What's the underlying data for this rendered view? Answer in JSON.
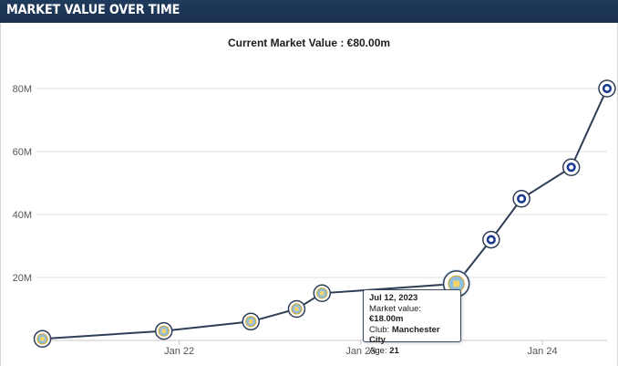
{
  "header": {
    "title": "MARKET VALUE OVER TIME"
  },
  "subtitle": "Current Market Value : €80.00m",
  "colors": {
    "header_bg": "#1d3557",
    "line": "#2f3e55",
    "grid": "#dcdcdc",
    "city_crest": "#8fbfe0",
    "chelsea_crest": "#1a3a8f"
  },
  "chart_data": {
    "type": "line",
    "title": "MARKET VALUE OVER TIME",
    "subtitle": "Current Market Value : €80.00m",
    "xlabel": "",
    "ylabel": "",
    "y_ticks": [
      "20M",
      "40M",
      "60M",
      "80M"
    ],
    "y_tick_values": [
      20,
      40,
      60,
      80
    ],
    "x_ticks": [
      "Jan 22",
      "Jan 23",
      "Jan 24"
    ],
    "x_tick_dates": [
      "2022-01-01",
      "2023-01-01",
      "2024-01-01"
    ],
    "ylim": [
      0,
      85
    ],
    "xlim": [
      "2021-03-20",
      "2024-05-10"
    ],
    "grid": true,
    "series": [
      {
        "points": [
          {
            "date": "2021-04-01",
            "value": 0.5,
            "club": "Manchester City"
          },
          {
            "date": "2021-12-01",
            "value": 3,
            "club": "Manchester City"
          },
          {
            "date": "2022-05-25",
            "value": 6,
            "club": "Manchester City"
          },
          {
            "date": "2022-08-25",
            "value": 10,
            "club": "Manchester City"
          },
          {
            "date": "2022-10-15",
            "value": 15,
            "club": "Manchester City"
          },
          {
            "date": "2023-07-12",
            "value": 18,
            "club": "Manchester City"
          },
          {
            "date": "2023-09-20",
            "value": 32,
            "club": "Chelsea"
          },
          {
            "date": "2023-11-20",
            "value": 45,
            "club": "Chelsea"
          },
          {
            "date": "2024-02-28",
            "value": 55,
            "club": "Chelsea"
          },
          {
            "date": "2024-05-10",
            "value": 80,
            "club": "Chelsea"
          }
        ]
      }
    ],
    "tooltip": {
      "date": "Jul 12, 2023",
      "market_value_label": "Market value:",
      "market_value": "€18.00m",
      "club_label": "Club:",
      "club": "Manchester City",
      "age_label": "Age:",
      "age": "21"
    }
  }
}
